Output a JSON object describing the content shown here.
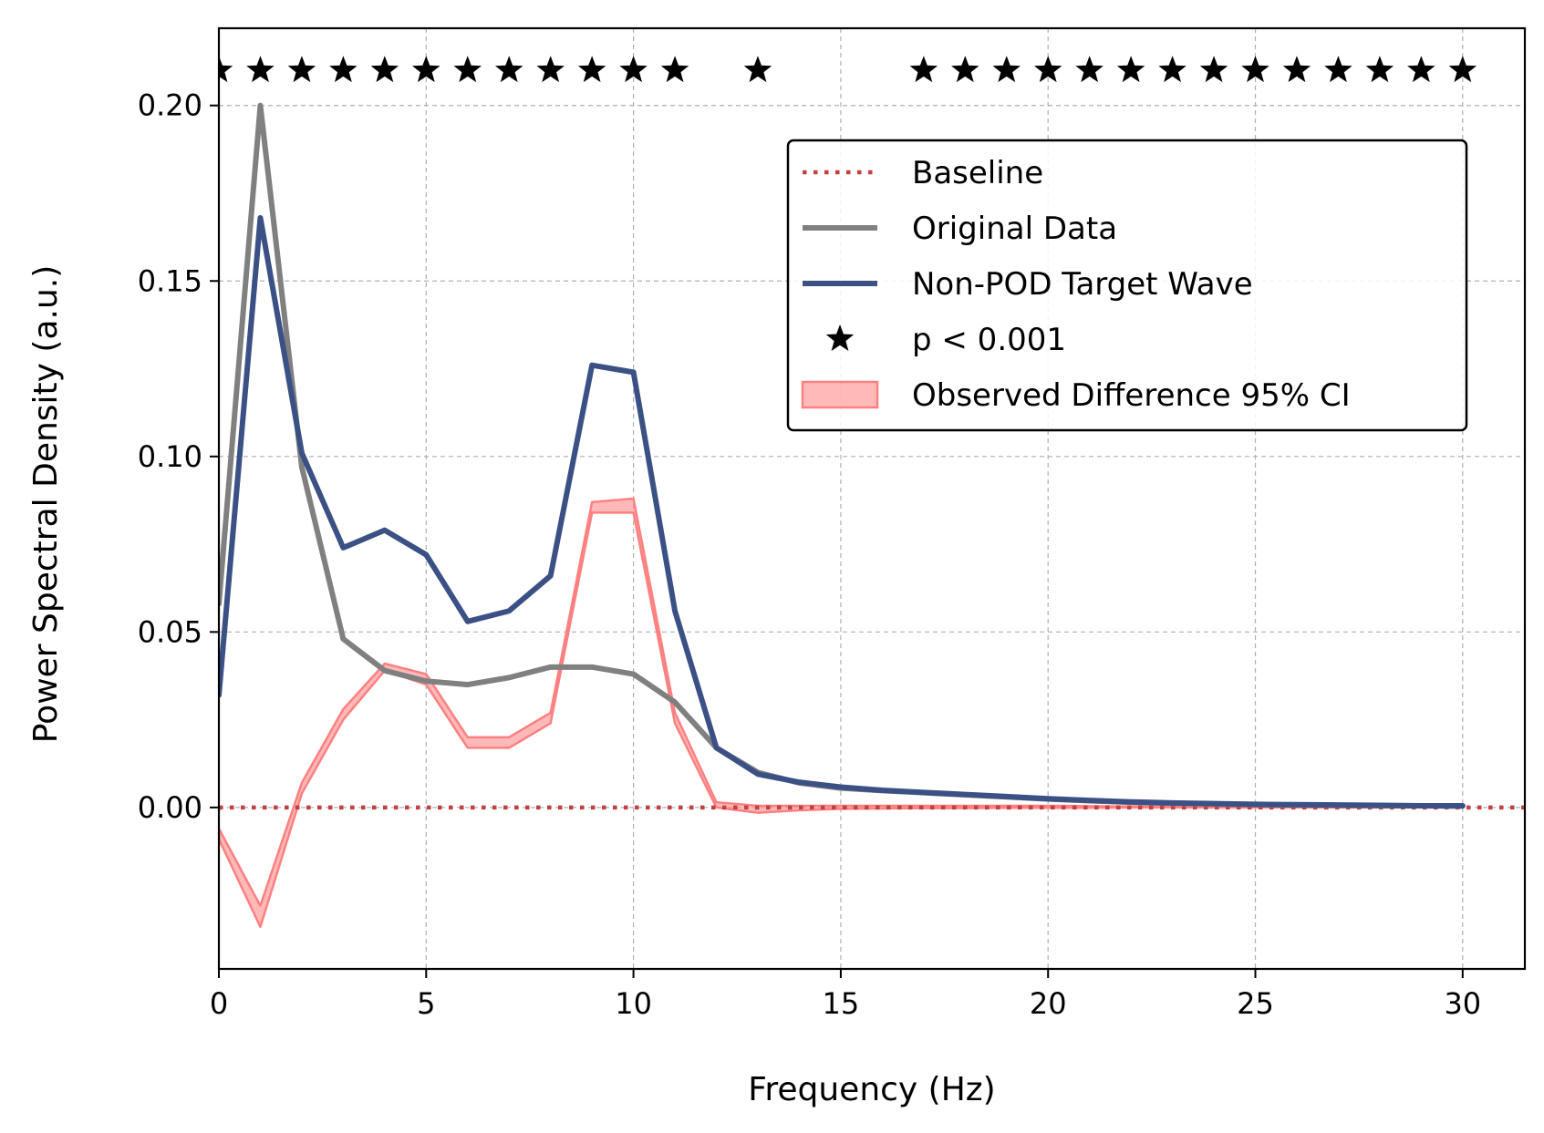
{
  "chart_data": {
    "type": "line",
    "title": "",
    "xlabel": "Frequency (Hz)",
    "ylabel": "Power Spectral Density (a.u.)",
    "xlim": [
      0,
      31.5
    ],
    "ylim": [
      -0.046,
      0.222
    ],
    "xticks": [
      0,
      5,
      10,
      15,
      20,
      25,
      30
    ],
    "yticks": [
      0.0,
      0.05,
      0.1,
      0.15,
      0.2
    ],
    "xtick_labels": [
      "0",
      "5",
      "10",
      "15",
      "20",
      "25",
      "30"
    ],
    "ytick_labels": [
      "0.00",
      "0.05",
      "0.10",
      "0.15",
      "0.20"
    ],
    "grid": true,
    "legend_position": "upper right",
    "baseline": {
      "name": "Baseline",
      "y": 0.0,
      "color": "#c0413f",
      "style": "dotted"
    },
    "series": [
      {
        "name": "Original Data",
        "color": "#808080",
        "x": [
          0,
          1,
          2,
          3,
          4,
          5,
          6,
          7,
          8,
          9,
          10,
          11,
          12,
          13,
          14,
          15,
          16,
          17,
          18,
          19,
          20,
          21,
          22,
          23,
          24,
          25,
          26,
          27,
          28,
          29,
          30
        ],
        "values": [
          0.058,
          0.2,
          0.097,
          0.048,
          0.039,
          0.036,
          0.035,
          0.037,
          0.04,
          0.04,
          0.038,
          0.03,
          0.017,
          0.01,
          0.007,
          0.0055,
          0.0048,
          0.0042,
          0.0036,
          0.003,
          0.0024,
          0.0019,
          0.0015,
          0.0012,
          0.001,
          0.0008,
          0.0007,
          0.0006,
          0.0005,
          0.0005,
          0.0004
        ]
      },
      {
        "name": "Non-POD Target Wave",
        "color": "#3b5085",
        "x": [
          0,
          1,
          2,
          3,
          4,
          5,
          6,
          7,
          8,
          9,
          10,
          11,
          12,
          13,
          14,
          15,
          16,
          17,
          18,
          19,
          20,
          21,
          22,
          23,
          24,
          25,
          26,
          27,
          28,
          29,
          30
        ],
        "values": [
          0.032,
          0.168,
          0.101,
          0.074,
          0.079,
          0.072,
          0.053,
          0.056,
          0.066,
          0.126,
          0.124,
          0.056,
          0.017,
          0.0095,
          0.0072,
          0.0058,
          0.0049,
          0.0043,
          0.0037,
          0.0031,
          0.0025,
          0.002,
          0.0016,
          0.0013,
          0.0011,
          0.0009,
          0.0008,
          0.0007,
          0.0006,
          0.0005,
          0.0005
        ]
      }
    ],
    "ci_band": {
      "name": "Observed Difference 95% CI",
      "color": "#ff8080",
      "x": [
        0,
        1,
        2,
        3,
        4,
        5,
        6,
        7,
        8,
        9,
        10,
        11,
        12,
        13,
        14,
        15,
        16,
        17,
        18,
        19,
        20,
        21,
        22,
        23,
        24,
        25,
        26,
        27,
        28,
        29,
        30
      ],
      "lower": [
        -0.009,
        -0.034,
        0.004,
        0.025,
        0.039,
        0.035,
        0.017,
        0.017,
        0.024,
        0.084,
        0.084,
        0.024,
        0.0,
        -0.0015,
        -0.0008,
        -0.0004,
        -0.0003,
        -0.0002,
        -0.0002,
        -0.0001,
        -0.0001,
        -0.0001,
        0.0,
        0.0,
        0.0,
        0.0,
        0.0,
        0.0,
        0.0,
        0.0,
        0.0
      ],
      "upper": [
        -0.006,
        -0.028,
        0.007,
        0.028,
        0.041,
        0.038,
        0.02,
        0.02,
        0.027,
        0.087,
        0.088,
        0.027,
        0.0015,
        0.0005,
        0.0005,
        0.0005,
        0.0005,
        0.0005,
        0.0005,
        0.0005,
        0.0005,
        0.0004,
        0.0003,
        0.0002,
        0.0002,
        0.0001,
        0.0001,
        0.0001,
        0.0001,
        0.0001,
        0.0001
      ]
    },
    "significance": {
      "name": "p < 0.001",
      "y": 0.21,
      "x": [
        0,
        1,
        2,
        3,
        4,
        5,
        6,
        7,
        8,
        9,
        10,
        11,
        13,
        17,
        18,
        19,
        20,
        21,
        22,
        23,
        24,
        25,
        26,
        27,
        28,
        29,
        30
      ]
    },
    "legend": [
      {
        "label": "Baseline",
        "kind": "dotted",
        "color": "#c0413f"
      },
      {
        "label": "Original Data",
        "kind": "line",
        "color": "#808080"
      },
      {
        "label": "Non-POD Target Wave",
        "kind": "line",
        "color": "#3b5085"
      },
      {
        "label": "p < 0.001",
        "kind": "star",
        "color": "#000000"
      },
      {
        "label": "Observed Difference 95% CI",
        "kind": "patch",
        "color": "#ff8080"
      }
    ]
  }
}
